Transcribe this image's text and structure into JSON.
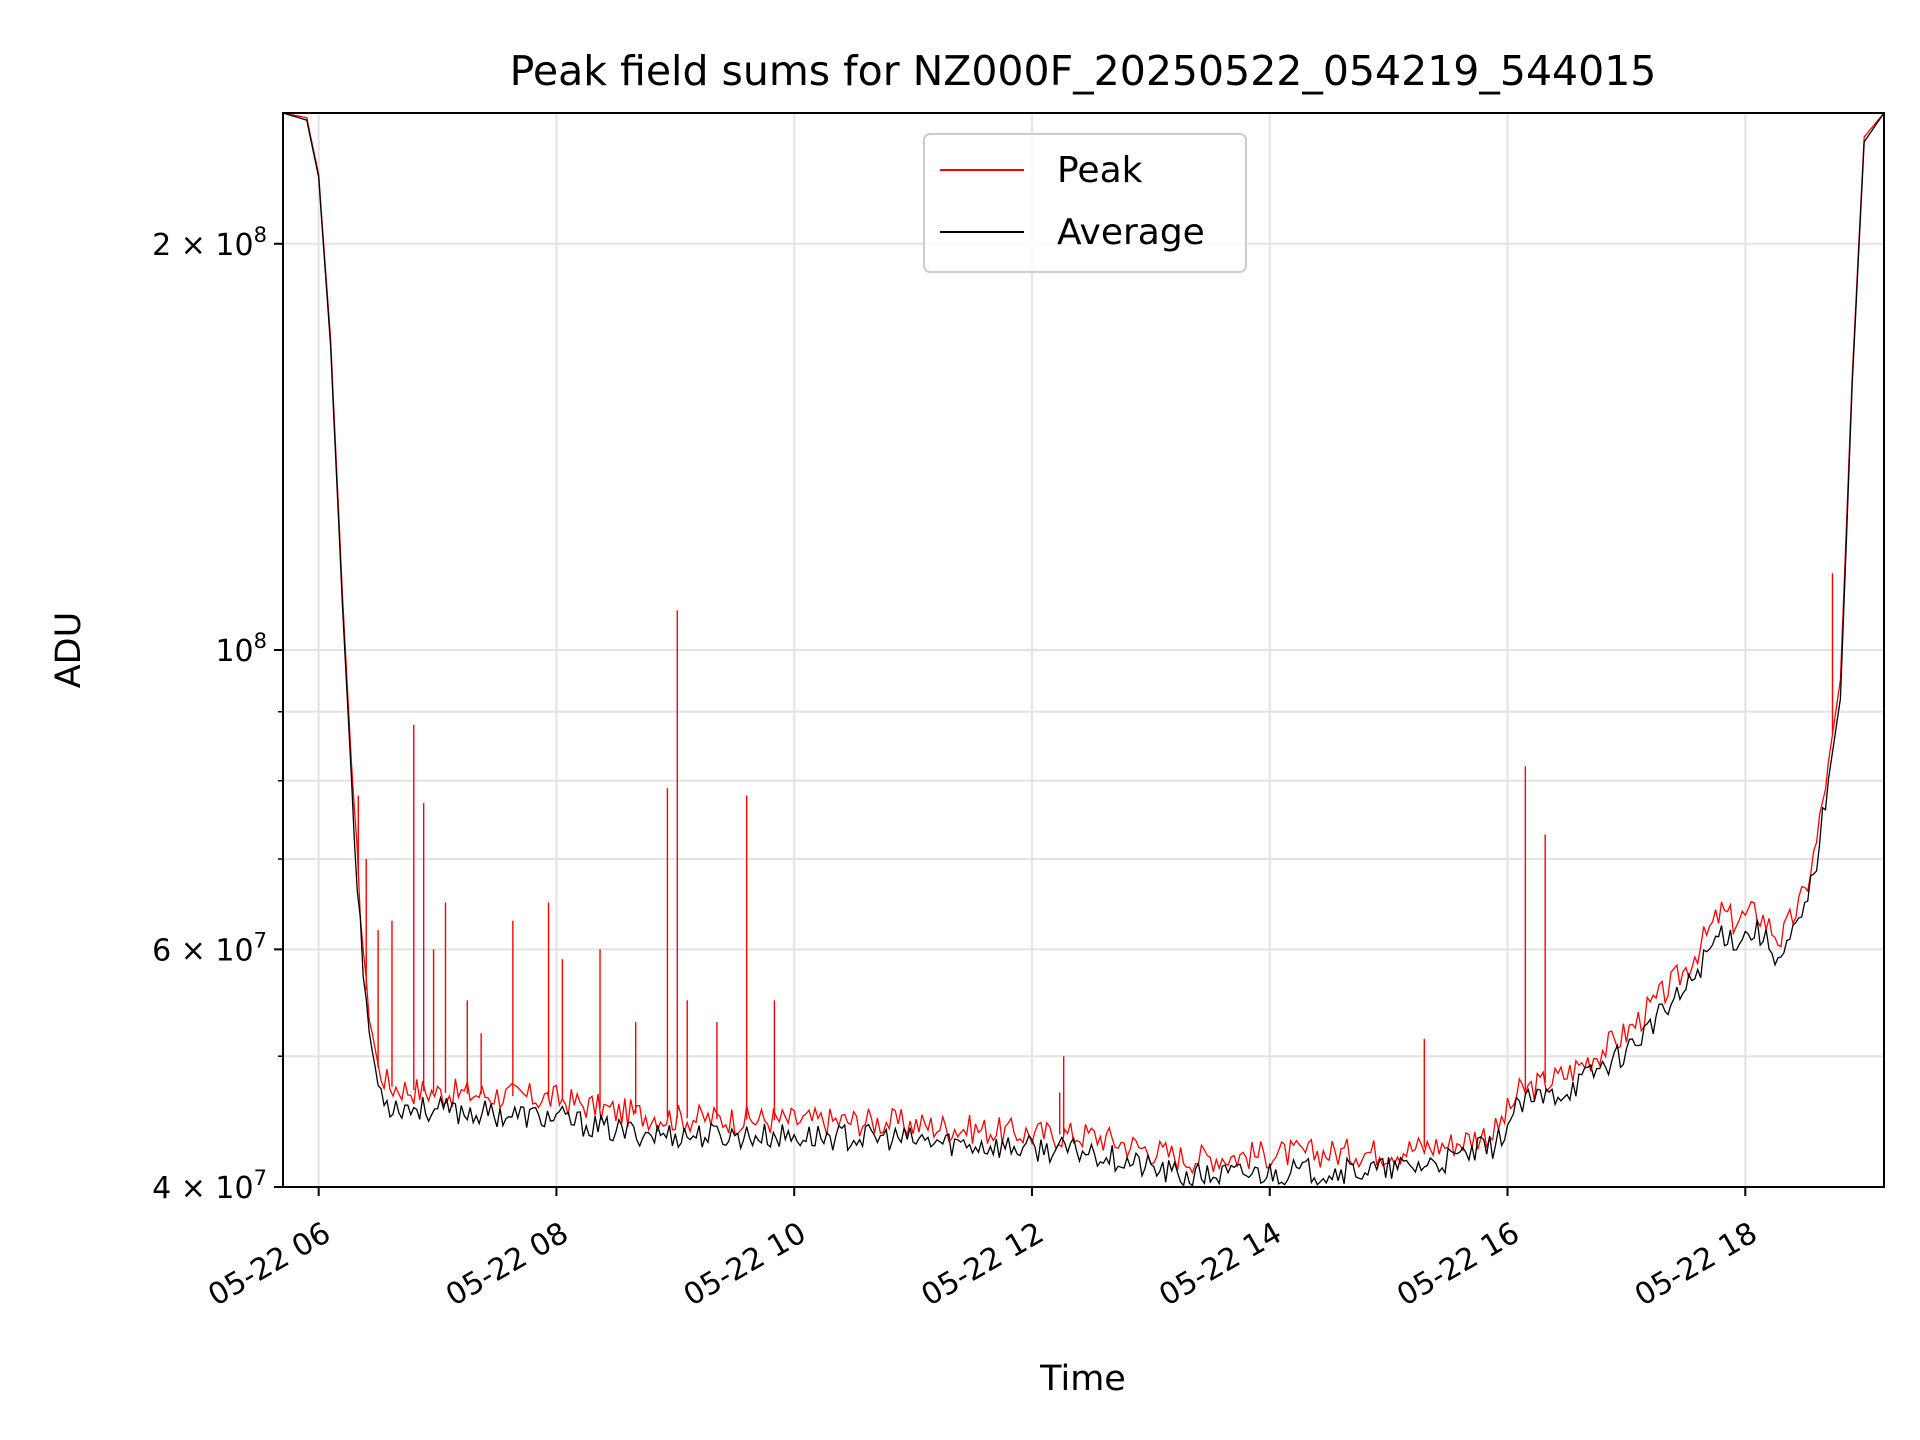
{
  "chart_data": {
    "type": "line",
    "title": "Peak field sums for NZ000F_20250522_054219_544015",
    "xlabel": "Time",
    "ylabel": "ADU",
    "y_scale": "log",
    "grid": true,
    "legend_position": "upper-center",
    "xlim": [
      "2025-05-22 05:42",
      "2025-05-22 19:10"
    ],
    "ylim": [
      40000000,
      250000000
    ],
    "x_ticks": [
      "05-22 06",
      "05-22 08",
      "05-22 10",
      "05-22 12",
      "05-22 14",
      "05-22 16",
      "05-22 18"
    ],
    "x_tick_values": [
      "2025-05-22 06:00",
      "2025-05-22 08:00",
      "2025-05-22 10:00",
      "2025-05-22 12:00",
      "2025-05-22 14:00",
      "2025-05-22 16:00",
      "2025-05-22 18:00"
    ],
    "y_ticks": [
      {
        "value": 40000000,
        "mantissa": "4",
        "exponent": "7"
      },
      {
        "value": 60000000,
        "mantissa": "6",
        "exponent": "7"
      },
      {
        "value": 100000000,
        "mantissa": "",
        "exponent": "8"
      },
      {
        "value": 200000000,
        "mantissa": "2",
        "exponent": "8"
      }
    ],
    "y_minor_ticks": [
      50000000,
      70000000,
      80000000,
      90000000
    ],
    "series": [
      {
        "name": "Peak",
        "color": "#ff0000",
        "x": [
          "2025-05-22 05:42",
          "2025-05-22 05:54",
          "2025-05-22 06:00",
          "2025-05-22 06:06",
          "2025-05-22 06:12",
          "2025-05-22 06:18",
          "2025-05-22 06:24",
          "2025-05-22 06:30",
          "2025-05-22 06:36",
          "2025-05-22 06:48",
          "2025-05-22 07:00",
          "2025-05-22 07:30",
          "2025-05-22 08:00",
          "2025-05-22 08:30",
          "2025-05-22 09:00",
          "2025-05-22 10:00",
          "2025-05-22 10:48",
          "2025-05-22 11:00",
          "2025-05-22 12:00",
          "2025-05-22 12:30",
          "2025-05-22 13:00",
          "2025-05-22 13:18",
          "2025-05-22 14:00",
          "2025-05-22 15:00",
          "2025-05-22 15:30",
          "2025-05-22 15:54",
          "2025-05-22 16:06",
          "2025-05-22 16:30",
          "2025-05-22 17:00",
          "2025-05-22 17:30",
          "2025-05-22 17:48",
          "2025-05-22 17:54",
          "2025-05-22 18:06",
          "2025-05-22 18:18",
          "2025-05-22 18:30",
          "2025-05-22 18:36",
          "2025-05-22 18:48",
          "2025-05-22 18:54",
          "2025-05-22 19:00",
          "2025-05-22 19:10"
        ],
        "values": [
          250000000,
          248000000,
          225000000,
          170000000,
          110000000,
          75000000,
          56000000,
          49000000,
          47500000,
          47200000,
          47000000,
          46800000,
          46500000,
          45500000,
          45000000,
          44800000,
          44700000,
          44500000,
          43800000,
          43700000,
          42600000,
          42000000,
          42300000,
          42500000,
          43000000,
          44000000,
          47000000,
          48500000,
          52000000,
          58000000,
          64000000,
          63000000,
          64000000,
          61000000,
          66000000,
          72000000,
          95000000,
          160000000,
          240000000,
          250000000
        ],
        "spikes": [
          {
            "x": "2025-05-22 06:20",
            "y": 78000000
          },
          {
            "x": "2025-05-22 06:24",
            "y": 70000000
          },
          {
            "x": "2025-05-22 06:30",
            "y": 62000000
          },
          {
            "x": "2025-05-22 06:37",
            "y": 63000000
          },
          {
            "x": "2025-05-22 06:48",
            "y": 88000000
          },
          {
            "x": "2025-05-22 06:53",
            "y": 77000000
          },
          {
            "x": "2025-05-22 06:58",
            "y": 60000000
          },
          {
            "x": "2025-05-22 07:04",
            "y": 65000000
          },
          {
            "x": "2025-05-22 07:15",
            "y": 55000000
          },
          {
            "x": "2025-05-22 07:22",
            "y": 52000000
          },
          {
            "x": "2025-05-22 07:38",
            "y": 63000000
          },
          {
            "x": "2025-05-22 07:56",
            "y": 65000000
          },
          {
            "x": "2025-05-22 08:03",
            "y": 59000000
          },
          {
            "x": "2025-05-22 08:22",
            "y": 60000000
          },
          {
            "x": "2025-05-22 08:40",
            "y": 53000000
          },
          {
            "x": "2025-05-22 08:56",
            "y": 79000000
          },
          {
            "x": "2025-05-22 09:01",
            "y": 107000000
          },
          {
            "x": "2025-05-22 09:06",
            "y": 55000000
          },
          {
            "x": "2025-05-22 09:21",
            "y": 53000000
          },
          {
            "x": "2025-05-22 09:36",
            "y": 78000000
          },
          {
            "x": "2025-05-22 09:50",
            "y": 55000000
          },
          {
            "x": "2025-05-22 12:14",
            "y": 47000000
          },
          {
            "x": "2025-05-22 12:16",
            "y": 50000000
          },
          {
            "x": "2025-05-22 15:18",
            "y": 51500000
          },
          {
            "x": "2025-05-22 16:09",
            "y": 82000000
          },
          {
            "x": "2025-05-22 16:19",
            "y": 73000000
          },
          {
            "x": "2025-05-22 18:44",
            "y": 114000000
          }
        ]
      },
      {
        "name": "Average",
        "color": "#000000",
        "x": [
          "2025-05-22 05:42",
          "2025-05-22 05:54",
          "2025-05-22 06:00",
          "2025-05-22 06:06",
          "2025-05-22 06:12",
          "2025-05-22 06:18",
          "2025-05-22 06:24",
          "2025-05-22 06:30",
          "2025-05-22 06:36",
          "2025-05-22 06:48",
          "2025-05-22 07:00",
          "2025-05-22 07:30",
          "2025-05-22 08:00",
          "2025-05-22 08:30",
          "2025-05-22 09:00",
          "2025-05-22 10:00",
          "2025-05-22 10:48",
          "2025-05-22 11:00",
          "2025-05-22 12:00",
          "2025-05-22 12:30",
          "2025-05-22 13:00",
          "2025-05-22 13:18",
          "2025-05-22 14:00",
          "2025-05-22 15:00",
          "2025-05-22 15:30",
          "2025-05-22 15:54",
          "2025-05-22 16:06",
          "2025-05-22 16:30",
          "2025-05-22 17:00",
          "2025-05-22 17:30",
          "2025-05-22 17:48",
          "2025-05-22 17:54",
          "2025-05-22 18:06",
          "2025-05-22 18:18",
          "2025-05-22 18:30",
          "2025-05-22 18:36",
          "2025-05-22 18:48",
          "2025-05-22 18:54",
          "2025-05-22 19:00",
          "2025-05-22 19:10"
        ],
        "values": [
          250000000,
          247000000,
          224000000,
          168000000,
          108000000,
          73000000,
          54000000,
          47500000,
          46000000,
          45800000,
          45600000,
          45300000,
          45000000,
          44000000,
          43700000,
          43600000,
          43500000,
          43300000,
          42700000,
          42500000,
          41300000,
          40700000,
          41000000,
          41200000,
          41800000,
          43000000,
          46000000,
          47200000,
          50500000,
          56000000,
          62000000,
          61000000,
          62000000,
          59000000,
          64000000,
          70000000,
          92000000,
          158000000,
          238000000,
          250000000
        ]
      }
    ]
  }
}
